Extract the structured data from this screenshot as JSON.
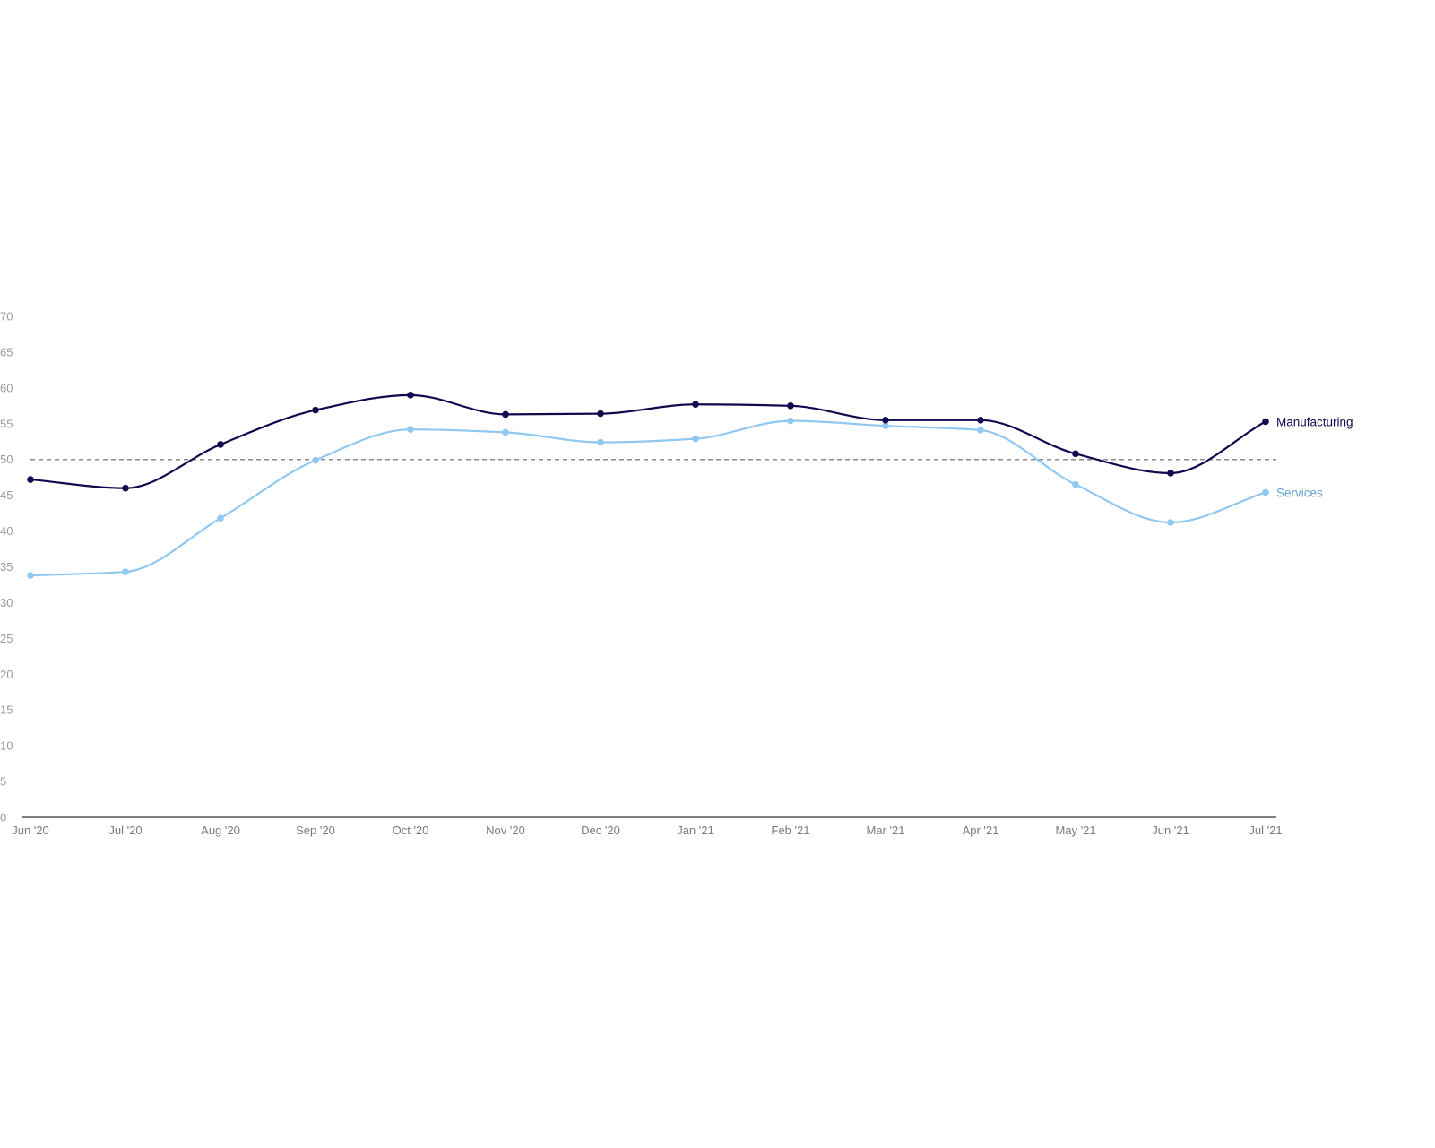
{
  "chart_data": {
    "type": "line",
    "title": "",
    "xlabel": "",
    "ylabel": "",
    "categories": [
      "Jun '20",
      "Jul '20",
      "Aug '20",
      "Sep '20",
      "Oct '20",
      "Nov '20",
      "Dec '20",
      "Jan '21",
      "Feb '21",
      "Mar '21",
      "Apr '21",
      "May '21",
      "Jun '21",
      "Jul '21"
    ],
    "ylim": [
      0,
      70
    ],
    "yticks": [
      "0",
      "5",
      "10",
      "15",
      "20",
      "25",
      "30",
      "35",
      "40",
      "45",
      "50",
      "55",
      "60",
      "65",
      "70"
    ],
    "reference_line": {
      "value": 50,
      "style": "dashed"
    },
    "grid": false,
    "legend": "inline-right",
    "series": [
      {
        "name": "Manufacturing",
        "color": "#110a4f",
        "values": [
          47.2,
          46.0,
          52.1,
          56.9,
          59.0,
          56.3,
          56.4,
          57.7,
          57.5,
          55.5,
          55.5,
          50.8,
          48.1,
          55.3
        ]
      },
      {
        "name": "Services",
        "color": "#8fc8f0",
        "values": [
          33.8,
          34.3,
          41.8,
          49.9,
          54.2,
          53.8,
          52.4,
          52.9,
          55.4,
          54.7,
          54.1,
          46.5,
          41.2,
          45.4
        ]
      }
    ]
  }
}
